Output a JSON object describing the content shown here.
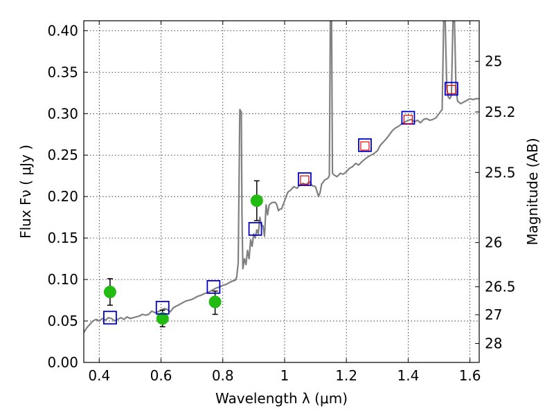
{
  "chart_data": {
    "type": "scatter",
    "xlabel": "Wavelength  λ (μm)",
    "ylabel": "Flux  Fν  ( μJy )",
    "y2label": "Magnitude (AB)",
    "xlim": [
      0.35,
      1.63
    ],
    "ylim": [
      0.0,
      0.412
    ],
    "x_ticks": [
      0.4,
      0.6,
      0.8,
      1.0,
      1.2,
      1.4,
      1.6
    ],
    "x_tick_labels": [
      "0.4",
      "0.6",
      "0.8",
      "1",
      "1.2",
      "1.4",
      "1.6"
    ],
    "y_ticks": [
      0.0,
      0.05,
      0.1,
      0.15,
      0.2,
      0.25,
      0.3,
      0.35,
      0.4
    ],
    "y_tick_labels": [
      "0.00",
      "0.05",
      "0.10",
      "0.15",
      "0.20",
      "0.25",
      "0.30",
      "0.35",
      "0.40"
    ],
    "y2_ticks": [
      {
        "label": "25",
        "mag": 25.0
      },
      {
        "label": "25.2",
        "mag": 25.2
      },
      {
        "label": "25.5",
        "mag": 25.5
      },
      {
        "label": "26",
        "mag": 26.0
      },
      {
        "label": "26.5",
        "mag": 26.5
      },
      {
        "label": "27",
        "mag": 27.0
      },
      {
        "label": "28",
        "mag": 28.0
      }
    ],
    "grid": true,
    "colors": {
      "spectrum": "#808080",
      "observed": "#22bb11",
      "model_box": "#0000cc",
      "inner_box": "#ee0000"
    },
    "series": [
      {
        "type": "line",
        "points": [
          [
            0.35,
            0.036
          ],
          [
            0.36,
            0.042
          ],
          [
            0.37,
            0.046
          ],
          [
            0.38,
            0.05
          ],
          [
            0.39,
            0.052
          ],
          [
            0.4,
            0.05
          ],
          [
            0.41,
            0.053
          ],
          [
            0.42,
            0.051
          ],
          [
            0.43,
            0.054
          ],
          [
            0.44,
            0.053
          ],
          [
            0.45,
            0.05
          ],
          [
            0.46,
            0.052
          ],
          [
            0.47,
            0.054
          ],
          [
            0.48,
            0.052
          ],
          [
            0.49,
            0.055
          ],
          [
            0.5,
            0.053
          ],
          [
            0.51,
            0.054
          ],
          [
            0.52,
            0.055
          ],
          [
            0.53,
            0.056
          ],
          [
            0.54,
            0.058
          ],
          [
            0.55,
            0.057
          ],
          [
            0.56,
            0.058
          ],
          [
            0.57,
            0.062
          ],
          [
            0.58,
            0.06
          ],
          [
            0.59,
            0.061
          ],
          [
            0.6,
            0.063
          ],
          [
            0.61,
            0.065
          ],
          [
            0.62,
            0.064
          ],
          [
            0.63,
            0.061
          ],
          [
            0.64,
            0.066
          ],
          [
            0.65,
            0.068
          ],
          [
            0.66,
            0.07
          ],
          [
            0.67,
            0.072
          ],
          [
            0.68,
            0.074
          ],
          [
            0.69,
            0.075
          ],
          [
            0.7,
            0.076
          ],
          [
            0.71,
            0.078
          ],
          [
            0.72,
            0.08
          ],
          [
            0.73,
            0.081
          ],
          [
            0.74,
            0.083
          ],
          [
            0.75,
            0.084
          ],
          [
            0.76,
            0.086
          ],
          [
            0.77,
            0.088
          ],
          [
            0.78,
            0.09
          ],
          [
            0.79,
            0.091
          ],
          [
            0.8,
            0.093
          ],
          [
            0.81,
            0.094
          ],
          [
            0.82,
            0.096
          ],
          [
            0.83,
            0.098
          ],
          [
            0.84,
            0.099
          ],
          [
            0.845,
            0.103
          ],
          [
            0.85,
            0.12
          ],
          [
            0.855,
            0.305
          ],
          [
            0.86,
            0.302
          ],
          [
            0.862,
            0.18
          ],
          [
            0.865,
            0.113
          ],
          [
            0.87,
            0.125
          ],
          [
            0.875,
            0.118
          ],
          [
            0.88,
            0.135
          ],
          [
            0.885,
            0.125
          ],
          [
            0.89,
            0.148
          ],
          [
            0.895,
            0.14
          ],
          [
            0.9,
            0.155
          ],
          [
            0.905,
            0.15
          ],
          [
            0.91,
            0.16
          ],
          [
            0.915,
            0.155
          ],
          [
            0.92,
            0.175
          ],
          [
            0.925,
            0.165
          ],
          [
            0.93,
            0.165
          ],
          [
            0.935,
            0.152
          ],
          [
            0.94,
            0.19
          ],
          [
            0.945,
            0.178
          ],
          [
            0.95,
            0.19
          ],
          [
            0.96,
            0.193
          ],
          [
            0.97,
            0.193
          ],
          [
            0.975,
            0.19
          ],
          [
            0.98,
            0.183
          ],
          [
            0.985,
            0.185
          ],
          [
            0.99,
            0.185
          ],
          [
            1.0,
            0.195
          ],
          [
            1.01,
            0.205
          ],
          [
            1.02,
            0.208
          ],
          [
            1.03,
            0.212
          ],
          [
            1.04,
            0.21
          ],
          [
            1.05,
            0.214
          ],
          [
            1.06,
            0.216
          ],
          [
            1.07,
            0.214
          ],
          [
            1.08,
            0.218
          ],
          [
            1.09,
            0.213
          ],
          [
            1.1,
            0.212
          ],
          [
            1.11,
            0.2
          ],
          [
            1.115,
            0.205
          ],
          [
            1.12,
            0.215
          ],
          [
            1.13,
            0.22
          ],
          [
            1.14,
            0.222
          ],
          [
            1.145,
            0.225
          ],
          [
            1.148,
            0.412
          ],
          [
            1.152,
            0.412
          ],
          [
            1.155,
            0.228
          ],
          [
            1.16,
            0.226
          ],
          [
            1.17,
            0.224
          ],
          [
            1.18,
            0.228
          ],
          [
            1.19,
            0.227
          ],
          [
            1.2,
            0.23
          ],
          [
            1.21,
            0.234
          ],
          [
            1.22,
            0.236
          ],
          [
            1.23,
            0.24
          ],
          [
            1.24,
            0.238
          ],
          [
            1.25,
            0.242
          ],
          [
            1.26,
            0.245
          ],
          [
            1.27,
            0.248
          ],
          [
            1.28,
            0.25
          ],
          [
            1.29,
            0.252
          ],
          [
            1.3,
            0.255
          ],
          [
            1.31,
            0.262
          ],
          [
            1.32,
            0.266
          ],
          [
            1.33,
            0.27
          ],
          [
            1.34,
            0.275
          ],
          [
            1.35,
            0.28
          ],
          [
            1.36,
            0.283
          ],
          [
            1.37,
            0.285
          ],
          [
            1.38,
            0.288
          ],
          [
            1.39,
            0.29
          ],
          [
            1.4,
            0.292
          ],
          [
            1.41,
            0.293
          ],
          [
            1.42,
            0.29
          ],
          [
            1.43,
            0.292
          ],
          [
            1.44,
            0.289
          ],
          [
            1.45,
            0.293
          ],
          [
            1.46,
            0.294
          ],
          [
            1.47,
            0.292
          ],
          [
            1.48,
            0.293
          ],
          [
            1.49,
            0.295
          ],
          [
            1.5,
            0.3
          ],
          [
            1.51,
            0.305
          ],
          [
            1.515,
            0.412
          ],
          [
            1.52,
            0.412
          ],
          [
            1.525,
            0.33
          ],
          [
            1.53,
            0.32
          ],
          [
            1.535,
            0.318
          ],
          [
            1.54,
            0.322
          ],
          [
            1.545,
            0.412
          ],
          [
            1.55,
            0.412
          ],
          [
            1.555,
            0.33
          ],
          [
            1.56,
            0.315
          ],
          [
            1.57,
            0.312
          ],
          [
            1.58,
            0.314
          ],
          [
            1.59,
            0.316
          ],
          [
            1.6,
            0.318
          ],
          [
            1.61,
            0.317
          ],
          [
            1.62,
            0.318
          ],
          [
            1.63,
            0.318
          ]
        ]
      },
      {
        "type": "scatter_errorbar",
        "x": [
          0.435,
          0.605,
          0.775,
          0.91
        ],
        "y": [
          0.085,
          0.053,
          0.073,
          0.195
        ],
        "yerr_low": [
          0.016,
          0.01,
          0.015,
          0.024
        ],
        "yerr_high": [
          0.016,
          0.01,
          0.013,
          0.024
        ]
      },
      {
        "type": "scatter_box",
        "x": [
          0.435,
          0.605,
          0.77,
          0.905,
          1.065,
          1.26,
          1.4,
          1.54
        ],
        "y": [
          0.054,
          0.066,
          0.091,
          0.161,
          0.221,
          0.262,
          0.295,
          0.33
        ]
      },
      {
        "type": "scatter_box_inner",
        "x": [
          1.065,
          1.26,
          1.4,
          1.54
        ],
        "y": [
          0.22,
          0.261,
          0.293,
          0.329
        ]
      }
    ]
  }
}
